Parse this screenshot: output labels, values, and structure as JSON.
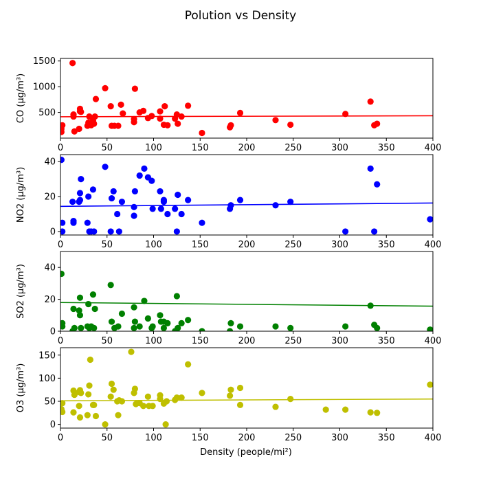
{
  "chart_data": {
    "title": "Polution vs Density",
    "xlabel": "Density (people/mi²)",
    "xlim": [
      0,
      400
    ],
    "xticks": [
      0,
      50,
      100,
      150,
      200,
      250,
      300,
      350,
      400
    ],
    "grid": false,
    "panels": [
      {
        "type": "scatter",
        "name": "CO",
        "ylabel": "CO (µg/m³)",
        "color": "#ff0000",
        "ylim": [
          0,
          1550
        ],
        "yticks": [
          500,
          1000,
          1500
        ],
        "trend": [
          [
            0,
            415
          ],
          [
            400,
            435
          ]
        ],
        "points": [
          [
            1,
            180
          ],
          [
            2,
            250
          ],
          [
            1,
            120
          ],
          [
            13,
            1460
          ],
          [
            14,
            420
          ],
          [
            14,
            460
          ],
          [
            15,
            130
          ],
          [
            20,
            180
          ],
          [
            21,
            520
          ],
          [
            21,
            570
          ],
          [
            22,
            510
          ],
          [
            29,
            240
          ],
          [
            30,
            300
          ],
          [
            31,
            420
          ],
          [
            33,
            250
          ],
          [
            35,
            340
          ],
          [
            36,
            280
          ],
          [
            37,
            420
          ],
          [
            38,
            760
          ],
          [
            48,
            970
          ],
          [
            54,
            620
          ],
          [
            55,
            240
          ],
          [
            58,
            240
          ],
          [
            62,
            240
          ],
          [
            65,
            650
          ],
          [
            67,
            480
          ],
          [
            79,
            310
          ],
          [
            79,
            370
          ],
          [
            80,
            960
          ],
          [
            85,
            500
          ],
          [
            89,
            530
          ],
          [
            94,
            390
          ],
          [
            98,
            430
          ],
          [
            107,
            380
          ],
          [
            107,
            520
          ],
          [
            111,
            260
          ],
          [
            112,
            620
          ],
          [
            115,
            250
          ],
          [
            123,
            380
          ],
          [
            125,
            460
          ],
          [
            126,
            280
          ],
          [
            130,
            420
          ],
          [
            137,
            630
          ],
          [
            152,
            100
          ],
          [
            182,
            210
          ],
          [
            183,
            250
          ],
          [
            193,
            490
          ],
          [
            231,
            350
          ],
          [
            247,
            260
          ],
          [
            306,
            470
          ],
          [
            333,
            710
          ],
          [
            337,
            250
          ],
          [
            340,
            280
          ]
        ]
      },
      {
        "type": "scatter",
        "name": "NO2",
        "ylabel": "NO2 (µg/m³)",
        "color": "#0000ff",
        "ylim": [
          -2,
          44
        ],
        "yticks": [
          0,
          20,
          40
        ],
        "trend": [
          [
            0,
            14.4
          ],
          [
            400,
            16.3
          ]
        ],
        "points": [
          [
            1,
            41
          ],
          [
            2,
            5
          ],
          [
            2,
            0
          ],
          [
            13,
            17
          ],
          [
            14,
            5
          ],
          [
            14,
            6
          ],
          [
            20,
            17
          ],
          [
            21,
            18
          ],
          [
            21,
            22
          ],
          [
            22,
            30
          ],
          [
            29,
            5
          ],
          [
            30,
            20
          ],
          [
            31,
            0
          ],
          [
            33,
            0
          ],
          [
            35,
            24
          ],
          [
            36,
            0
          ],
          [
            48,
            37
          ],
          [
            54,
            0
          ],
          [
            55,
            19
          ],
          [
            57,
            23
          ],
          [
            61,
            10
          ],
          [
            63,
            0
          ],
          [
            66,
            17
          ],
          [
            79,
            9
          ],
          [
            79,
            14
          ],
          [
            80,
            23
          ],
          [
            85,
            32
          ],
          [
            90,
            36
          ],
          [
            94,
            31
          ],
          [
            98,
            29
          ],
          [
            99,
            13
          ],
          [
            107,
            23
          ],
          [
            108,
            13
          ],
          [
            111,
            17
          ],
          [
            111,
            18
          ],
          [
            115,
            10
          ],
          [
            123,
            13
          ],
          [
            125,
            0
          ],
          [
            126,
            21
          ],
          [
            130,
            10
          ],
          [
            137,
            18
          ],
          [
            152,
            5
          ],
          [
            182,
            13
          ],
          [
            183,
            15
          ],
          [
            193,
            18
          ],
          [
            231,
            15
          ],
          [
            247,
            17
          ],
          [
            306,
            0
          ],
          [
            333,
            36
          ],
          [
            337,
            0
          ],
          [
            340,
            27
          ],
          [
            397,
            7
          ]
        ]
      },
      {
        "type": "scatter",
        "name": "SO2",
        "ylabel": "SO2 (µg/m³)",
        "color": "#008000",
        "ylim": [
          0,
          50
        ],
        "yticks": [
          0,
          20,
          40
        ],
        "trend": [
          [
            0,
            18
          ],
          [
            400,
            15.7
          ]
        ],
        "points": [
          [
            1,
            36
          ],
          [
            2,
            5
          ],
          [
            2,
            3
          ],
          [
            13,
            0
          ],
          [
            14,
            14
          ],
          [
            15,
            2
          ],
          [
            20,
            13
          ],
          [
            21,
            21
          ],
          [
            21,
            10
          ],
          [
            22,
            2
          ],
          [
            29,
            3
          ],
          [
            30,
            17
          ],
          [
            31,
            2
          ],
          [
            33,
            3
          ],
          [
            35,
            23
          ],
          [
            36,
            2
          ],
          [
            37,
            14
          ],
          [
            54,
            29
          ],
          [
            55,
            6
          ],
          [
            58,
            2
          ],
          [
            62,
            3
          ],
          [
            66,
            11
          ],
          [
            79,
            15
          ],
          [
            79,
            2
          ],
          [
            80,
            6
          ],
          [
            85,
            3
          ],
          [
            90,
            19
          ],
          [
            94,
            8
          ],
          [
            98,
            2
          ],
          [
            99,
            3
          ],
          [
            107,
            10
          ],
          [
            108,
            6
          ],
          [
            111,
            6
          ],
          [
            111,
            2
          ],
          [
            115,
            5
          ],
          [
            123,
            0
          ],
          [
            125,
            22
          ],
          [
            126,
            2
          ],
          [
            130,
            5
          ],
          [
            137,
            7
          ],
          [
            152,
            0
          ],
          [
            182,
            0
          ],
          [
            183,
            5
          ],
          [
            193,
            3
          ],
          [
            231,
            3
          ],
          [
            247,
            2
          ],
          [
            306,
            3
          ],
          [
            333,
            16
          ],
          [
            337,
            4
          ],
          [
            340,
            2
          ],
          [
            397,
            1
          ]
        ]
      },
      {
        "type": "scatter",
        "name": "O3",
        "ylabel": "O3 (µg/m³)",
        "color": "#bfbf00",
        "ylim": [
          -8,
          166
        ],
        "yticks": [
          0,
          50,
          100,
          150
        ],
        "trend": [
          [
            0,
            51
          ],
          [
            400,
            55
          ]
        ],
        "points": [
          [
            1,
            33
          ],
          [
            2,
            46
          ],
          [
            2,
            27
          ],
          [
            14,
            26
          ],
          [
            14,
            73
          ],
          [
            15,
            64
          ],
          [
            20,
            70
          ],
          [
            20,
            40
          ],
          [
            21,
            74
          ],
          [
            21,
            15
          ],
          [
            22,
            68
          ],
          [
            29,
            20
          ],
          [
            30,
            65
          ],
          [
            31,
            84
          ],
          [
            32,
            140
          ],
          [
            35,
            42
          ],
          [
            36,
            42
          ],
          [
            38,
            18
          ],
          [
            48,
            0
          ],
          [
            54,
            60
          ],
          [
            55,
            88
          ],
          [
            57,
            75
          ],
          [
            61,
            50
          ],
          [
            62,
            20
          ],
          [
            63,
            52
          ],
          [
            66,
            50
          ],
          [
            76,
            157
          ],
          [
            79,
            68
          ],
          [
            80,
            77
          ],
          [
            81,
            44
          ],
          [
            85,
            46
          ],
          [
            89,
            40
          ],
          [
            94,
            60
          ],
          [
            95,
            40
          ],
          [
            99,
            40
          ],
          [
            107,
            55
          ],
          [
            107,
            63
          ],
          [
            111,
            45
          ],
          [
            113,
            0
          ],
          [
            114,
            50
          ],
          [
            123,
            53
          ],
          [
            125,
            58
          ],
          [
            130,
            58
          ],
          [
            137,
            130
          ],
          [
            152,
            68
          ],
          [
            182,
            62
          ],
          [
            183,
            75
          ],
          [
            193,
            79
          ],
          [
            193,
            42
          ],
          [
            231,
            38
          ],
          [
            247,
            55
          ],
          [
            285,
            32
          ],
          [
            306,
            32
          ],
          [
            333,
            26
          ],
          [
            340,
            25
          ],
          [
            397,
            86
          ]
        ]
      }
    ]
  }
}
